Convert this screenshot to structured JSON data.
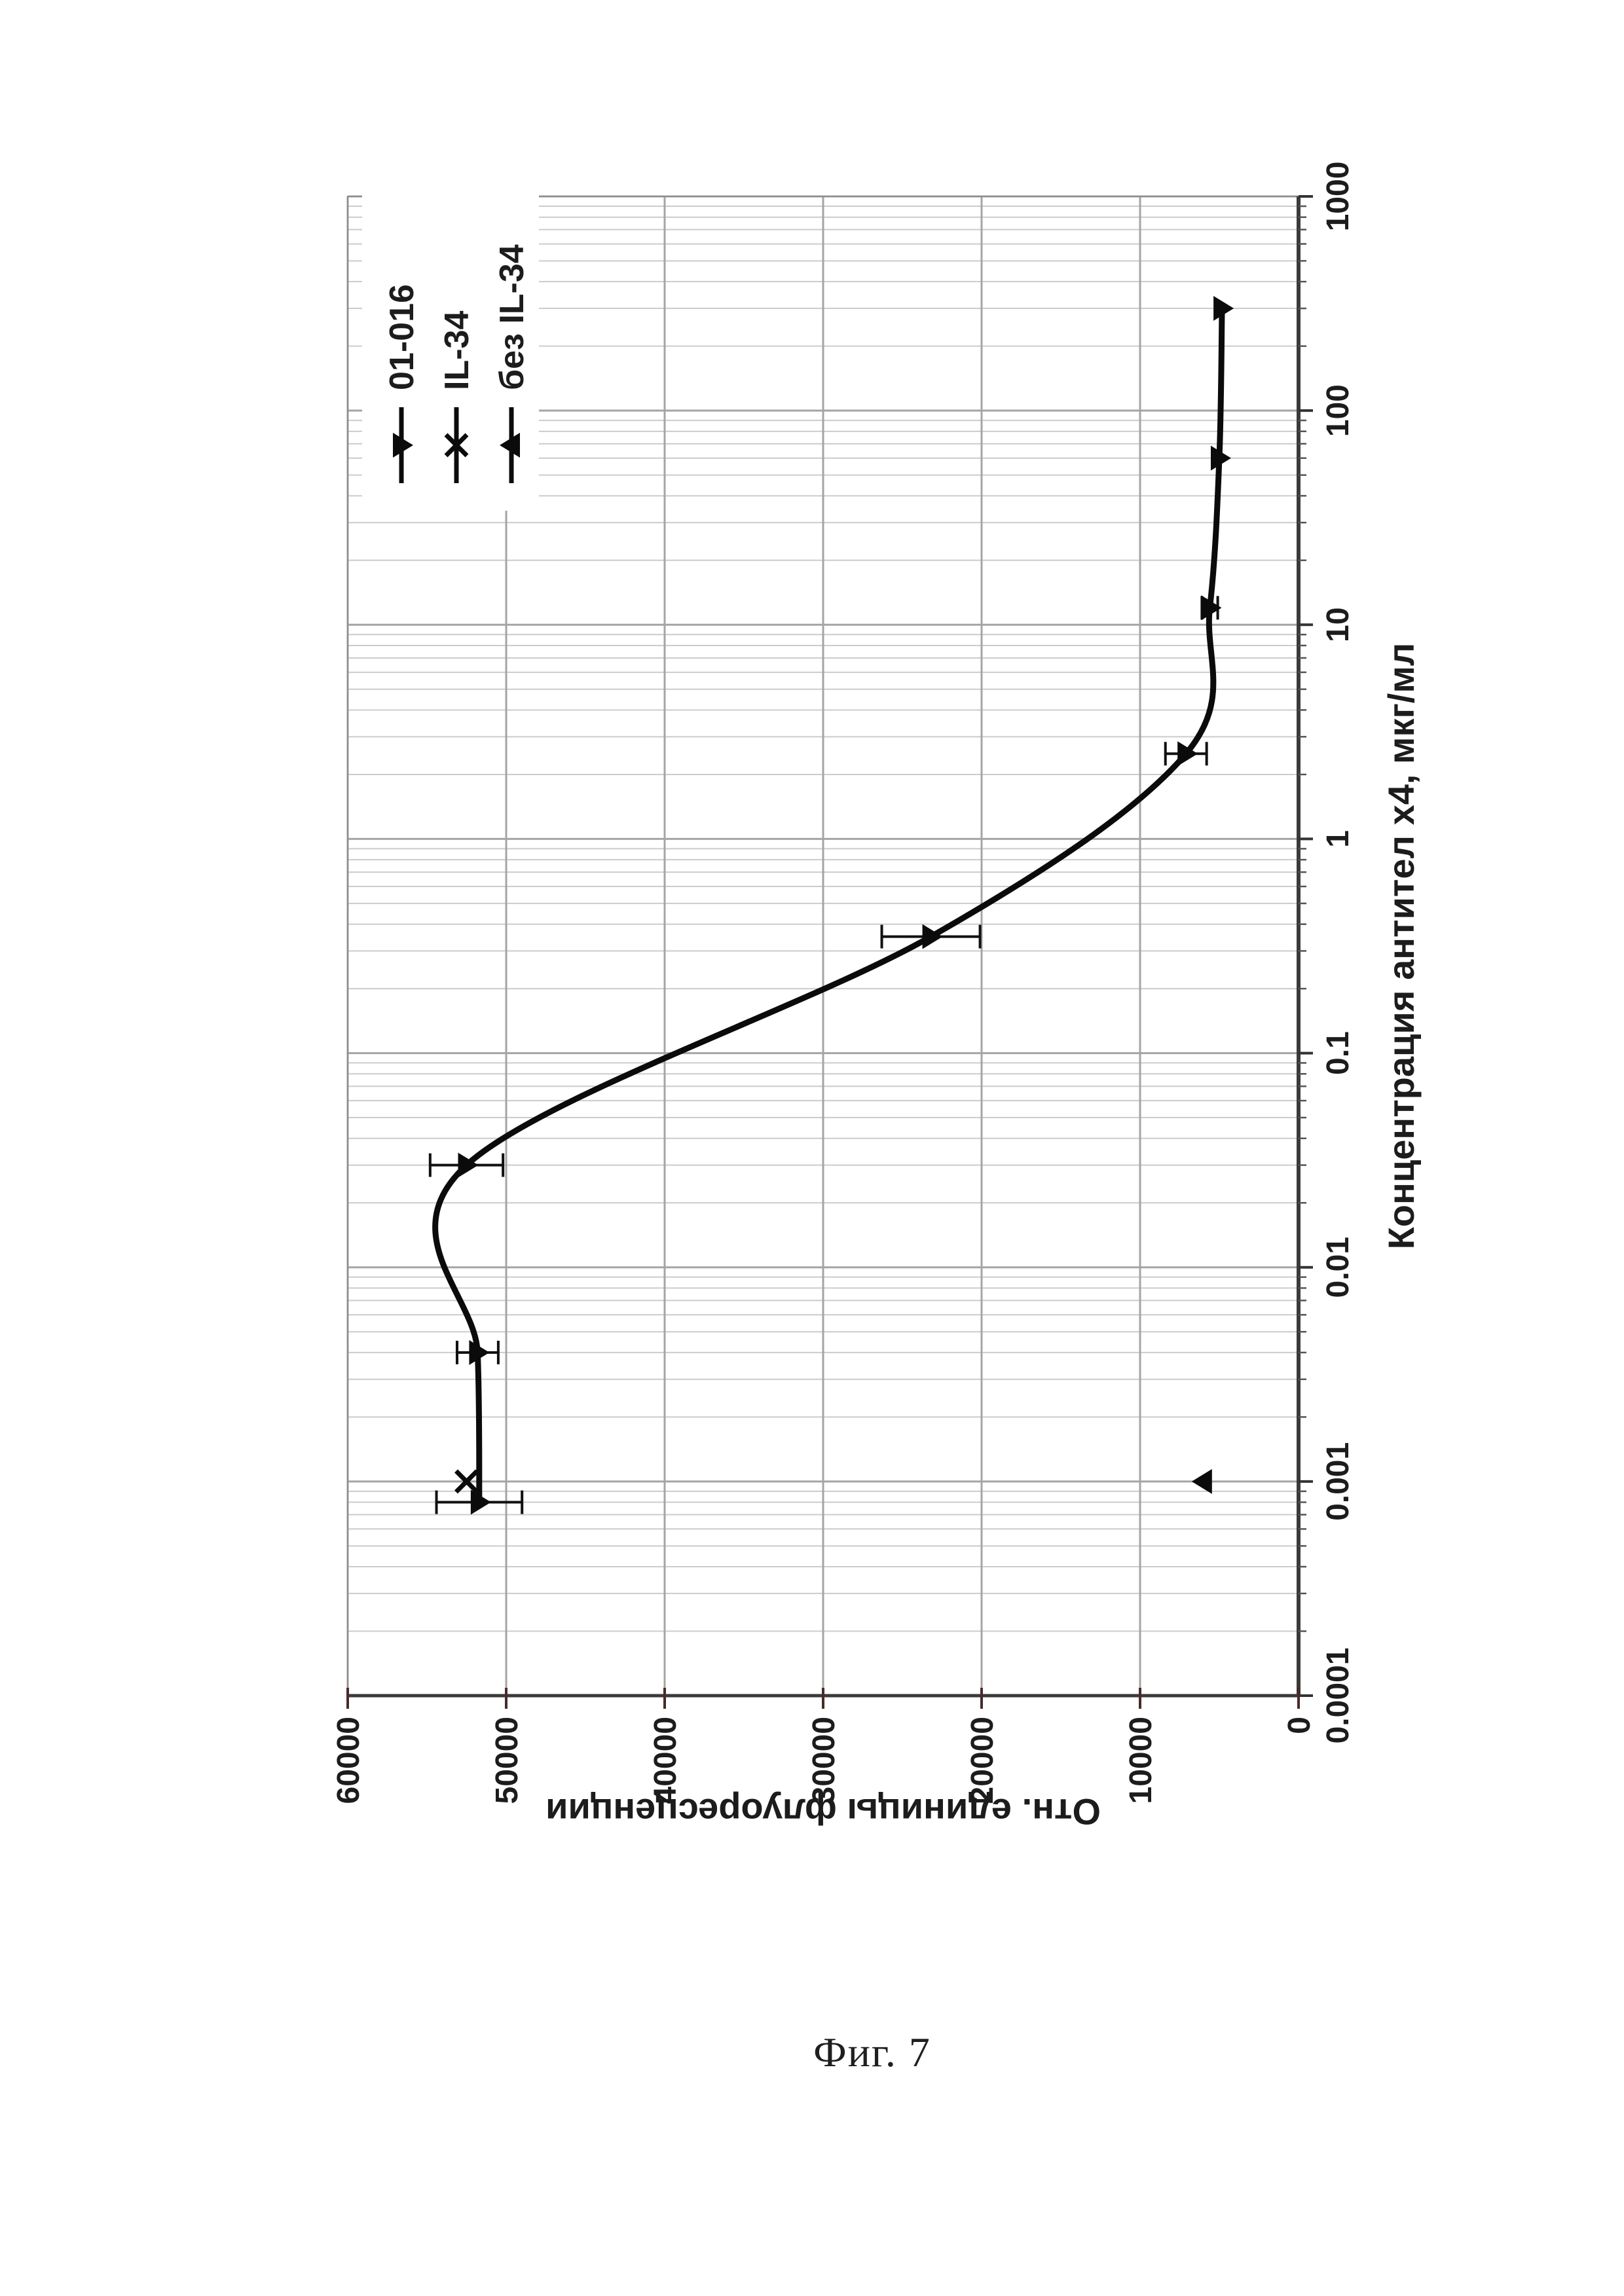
{
  "caption": "Фиг. 7",
  "chart_data": {
    "type": "line",
    "title": "",
    "xlabel": "Концентрация антител х4, мкг/мл",
    "ylabel": "Отн. единицы флуоресценции",
    "x_scale": "log",
    "xlim": [
      0.0001,
      1000
    ],
    "ylim": [
      0,
      60000
    ],
    "x_ticks": [
      0.0001,
      0.001,
      0.01,
      0.1,
      1,
      10,
      100,
      1000
    ],
    "x_tick_labels": [
      "0.0001",
      "0.001",
      "0.01",
      "0.1",
      "1",
      "10",
      "100",
      "1000"
    ],
    "y_ticks": [
      0,
      10000,
      20000,
      30000,
      40000,
      50000,
      60000
    ],
    "y_tick_labels": [
      "0",
      "10000",
      "20000",
      "30000",
      "40000",
      "50000",
      "60000"
    ],
    "grid": {
      "x_major": true,
      "x_minor": true,
      "y_major": true,
      "y_minor": false
    },
    "legend_position": "top-right",
    "orientation_note": "figure rotated 90deg CCW on page",
    "colors": {
      "line": "#0b0b0b",
      "marker": "#0b0b0b",
      "grid_major": "#a5a5a5",
      "grid_minor": "#cccccc",
      "axis": "#3a3a3a",
      "text": "#1c1c1c"
    },
    "series": [
      {
        "name": "01-016",
        "marker": "triangle-down",
        "line": true,
        "points": [
          {
            "x": 0.0008,
            "y": 51700,
            "err": 2700
          },
          {
            "x": 0.004,
            "y": 51800,
            "err": 1300
          },
          {
            "x": 0.03,
            "y": 52500,
            "err": 2300
          },
          {
            "x": 0.35,
            "y": 23200,
            "err": 3100
          },
          {
            "x": 2.5,
            "y": 7100,
            "err": 1300
          },
          {
            "x": 12,
            "y": 5600,
            "err": 500
          },
          {
            "x": 60,
            "y": 5000,
            "err": 0
          },
          {
            "x": 300,
            "y": 4830,
            "err": 0
          }
        ]
      },
      {
        "name": "IL-34",
        "marker": "x",
        "line": false,
        "points": [
          {
            "x": 0.001,
            "y": 52500,
            "err": 0
          }
        ]
      },
      {
        "name": "без IL-34",
        "marker": "triangle-up",
        "line": false,
        "points": [
          {
            "x": 0.001,
            "y": 6000,
            "err": 0
          }
        ]
      }
    ]
  }
}
